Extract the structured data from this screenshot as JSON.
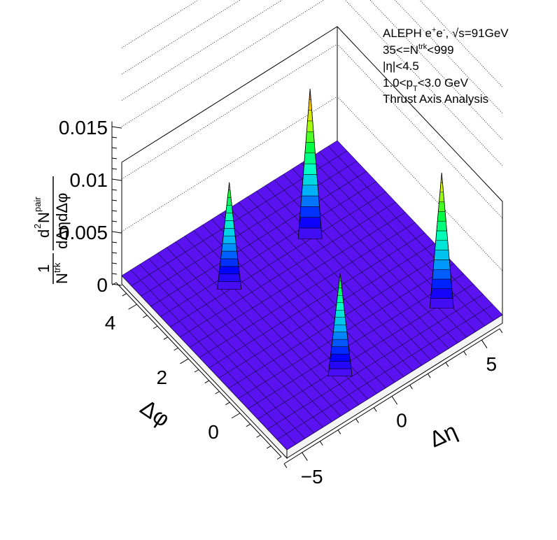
{
  "chart_data": {
    "type": "surface3d",
    "title": "",
    "xlabel": "Δη",
    "ylabel": "Δφ",
    "zlabel": "(1/N^trk) d²N^pair/dΔηdΔφ",
    "zlabel_parts": {
      "numerator": "1",
      "ntrk": "N",
      "ntrk_sup": "trk",
      "d2": "d",
      "d2_sup": "2",
      "npair": "N",
      "npair_sup": "pair",
      "denominator": "dΔηdΔφ"
    },
    "xlim": [
      -6,
      6
    ],
    "ylim": [
      -1.6,
      4.8
    ],
    "zlim": [
      0,
      0.016
    ],
    "x_ticks": [
      "−5",
      "0",
      "5"
    ],
    "x_tick_values": [
      -5,
      0,
      5
    ],
    "y_ticks": [
      "0",
      "2",
      "4"
    ],
    "y_tick_values": [
      0,
      2,
      4
    ],
    "z_ticks": [
      "0",
      "0.005",
      "0.01",
      "0.015"
    ],
    "z_tick_values": [
      0,
      0.005,
      0.01,
      0.015
    ],
    "grid": true,
    "colormap": "rainbow",
    "surface_color": "#5b12f0",
    "baseline": 0.0008,
    "peaks": [
      {
        "x": -2.6,
        "y": 3.0,
        "z": 0.0107
      },
      {
        "x": -1.6,
        "y": -0.6,
        "z": 0.0103
      },
      {
        "x": 1.9,
        "y": 3.0,
        "z": 0.0148
      },
      {
        "x": 4.2,
        "y": -0.5,
        "z": 0.0134
      }
    ]
  },
  "legend": {
    "line1_a": "ALEPH e",
    "line1_sup1": "+",
    "line1_b": "e",
    "line1_sup2": "-",
    "line1_c": ", √s=91GeV",
    "line2_a": "35<=N",
    "line2_sup": "trk",
    "line2_b": "<999",
    "line3": "|η|<4.5",
    "line4_a": "1.0<p",
    "line4_sub": "T",
    "line4_b": "<3.0 GeV",
    "line5": "Thrust Axis Analysis"
  }
}
